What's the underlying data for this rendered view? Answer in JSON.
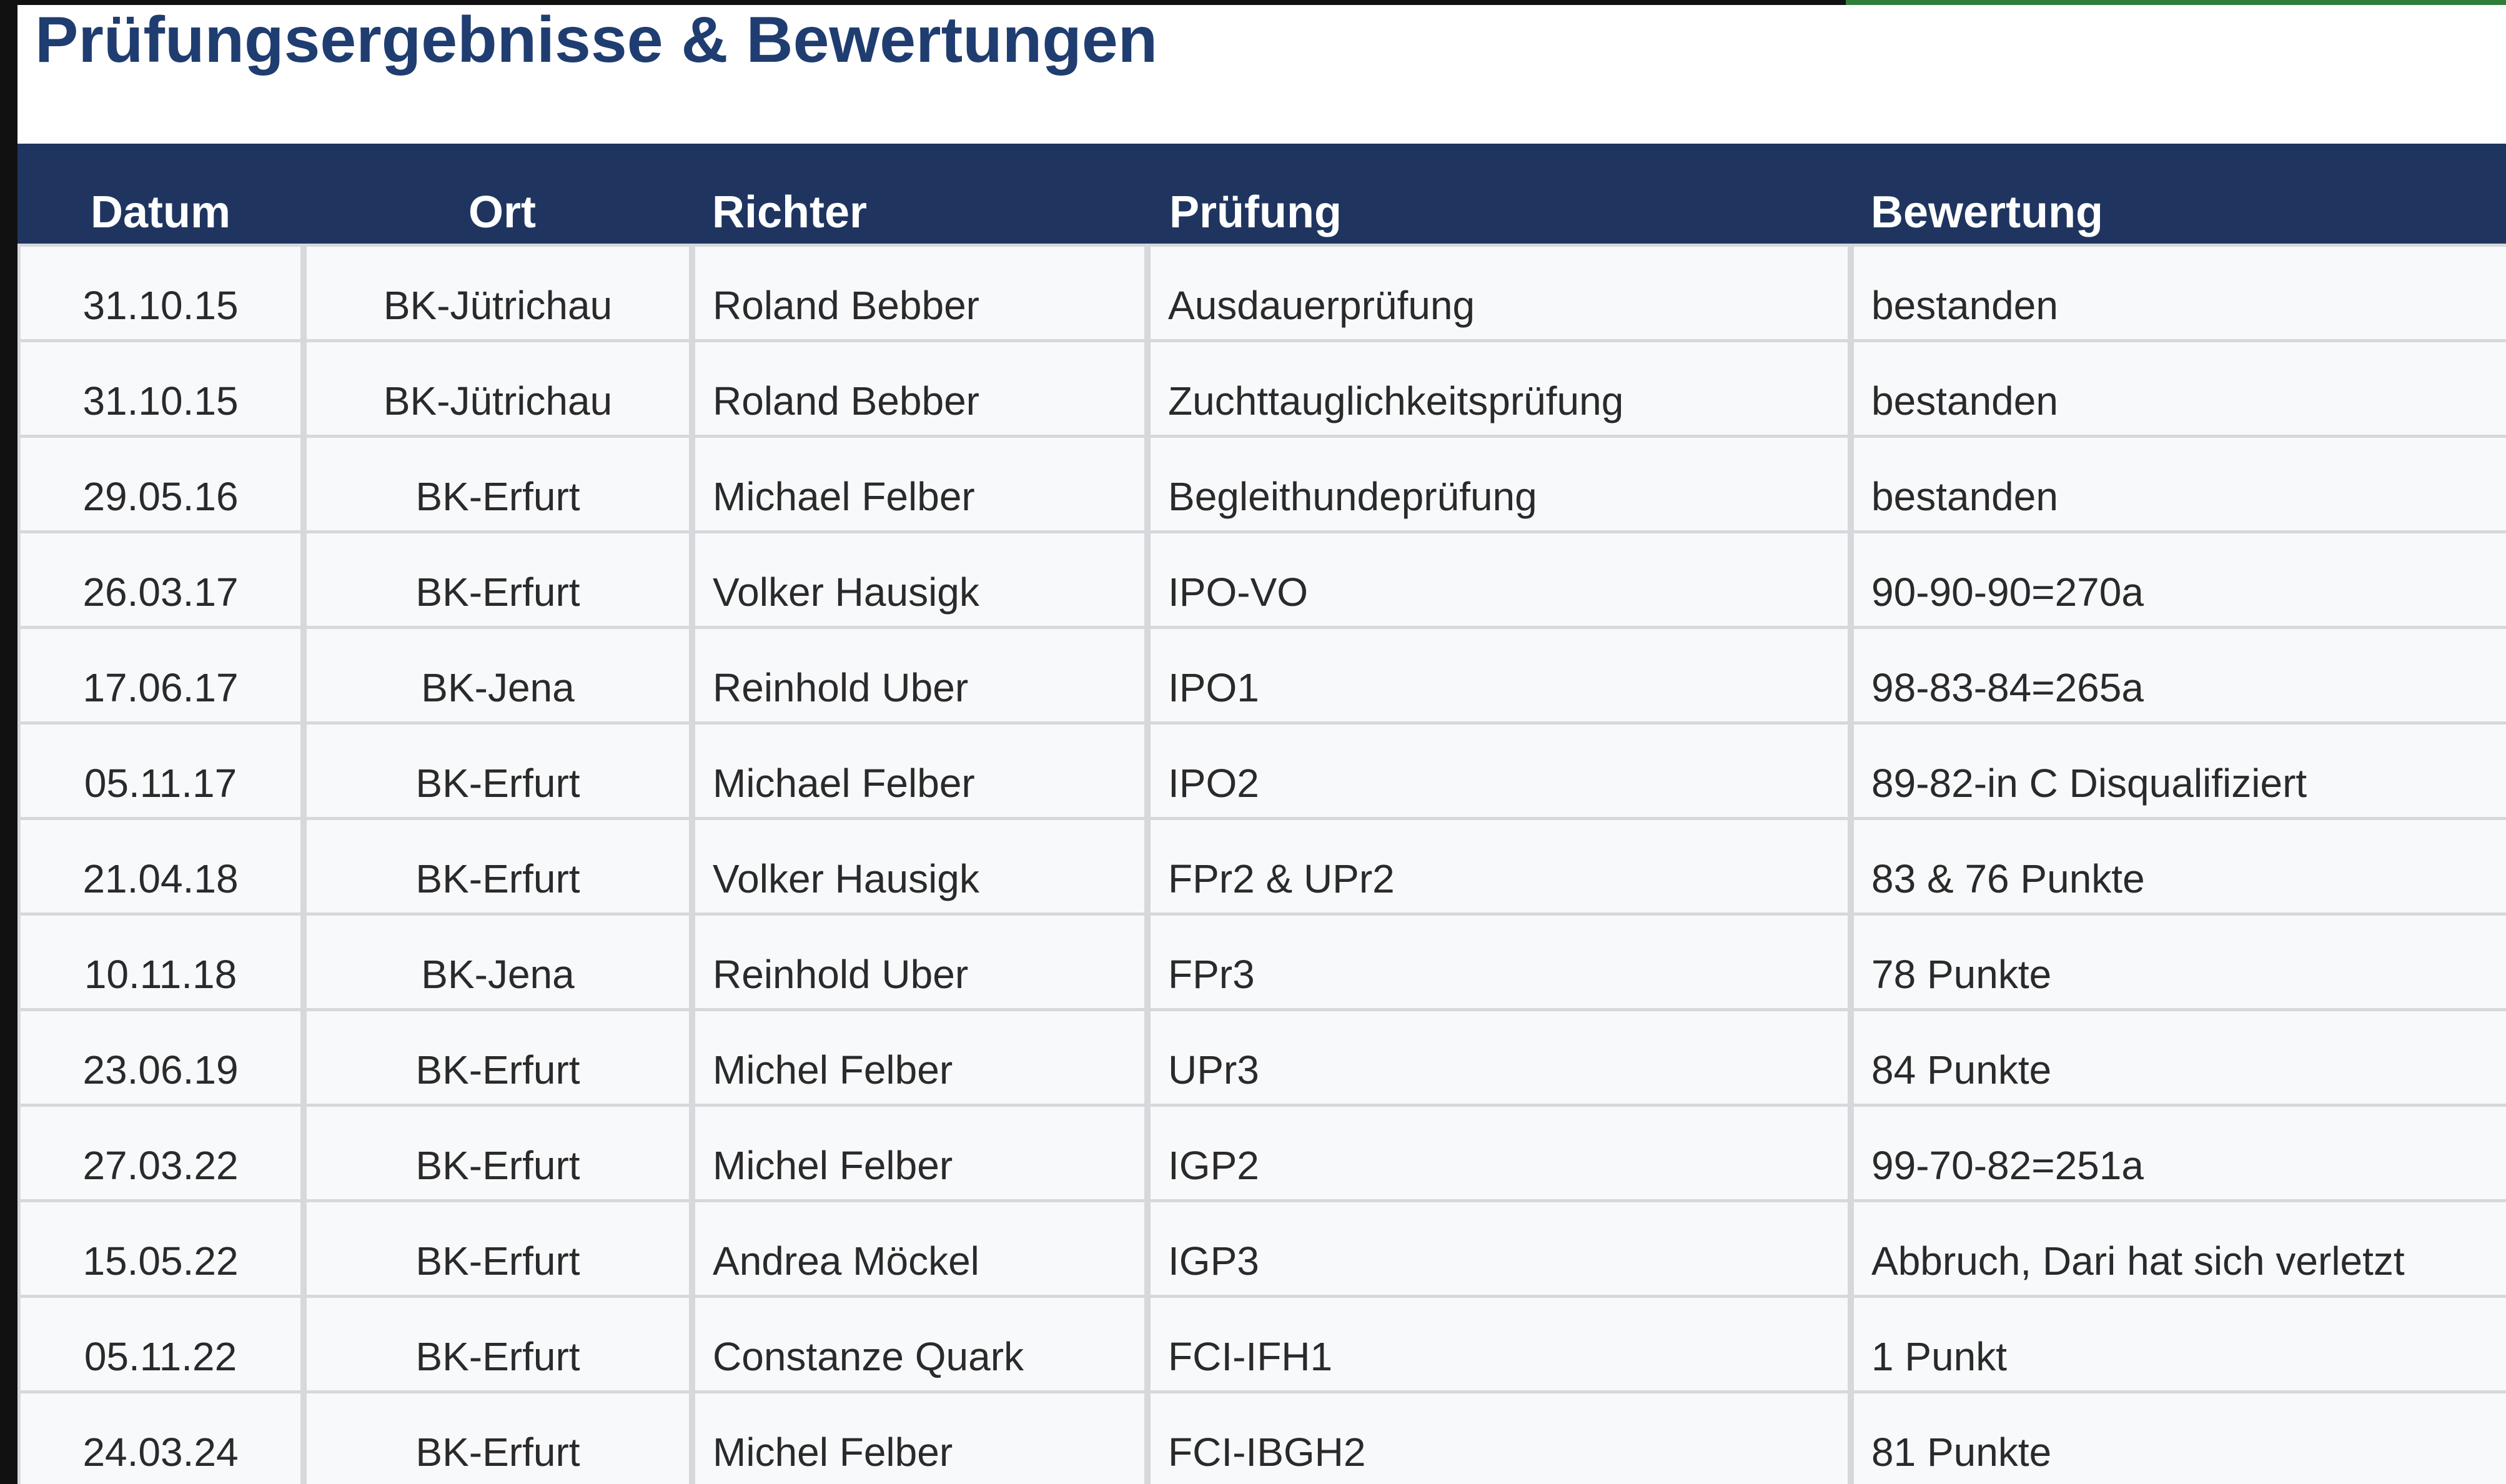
{
  "header": {
    "title": "Prüfungsergebnisse & Bewertungen"
  },
  "table": {
    "columns": [
      "Datum",
      "Ort",
      "Richter",
      "Prüfung",
      "Bewertung"
    ],
    "rows": [
      [
        "31.10.15",
        "BK-Jütrichau",
        "Roland Bebber",
        "Ausdauerprüfung",
        "bestanden"
      ],
      [
        "31.10.15",
        "BK-Jütrichau",
        "Roland Bebber",
        "Zuchttauglichkeitsprüfung",
        "bestanden"
      ],
      [
        "29.05.16",
        "BK-Erfurt",
        "Michael Felber",
        "Begleithundeprüfung",
        "bestanden"
      ],
      [
        "26.03.17",
        "BK-Erfurt",
        "Volker Hausigk",
        "IPO-VO",
        "90-90-90=270a"
      ],
      [
        "17.06.17",
        "BK-Jena",
        "Reinhold Uber",
        "IPO1",
        "98-83-84=265a"
      ],
      [
        "05.11.17",
        "BK-Erfurt",
        "Michael Felber",
        "IPO2",
        "89-82-in C Disqualifiziert"
      ],
      [
        "21.04.18",
        "BK-Erfurt",
        "Volker Hausigk",
        "FPr2 & UPr2",
        "83 & 76 Punkte"
      ],
      [
        "10.11.18",
        "BK-Jena",
        "Reinhold Uber",
        "FPr3",
        "78 Punkte"
      ],
      [
        "23.06.19",
        "BK-Erfurt",
        "Michel Felber",
        "UPr3",
        "84 Punkte"
      ],
      [
        "27.03.22",
        "BK-Erfurt",
        "Michel Felber",
        "IGP2",
        "99-70-82=251a"
      ],
      [
        "15.05.22",
        "BK-Erfurt",
        "Andrea Möckel",
        "IGP3",
        "Abbruch, Dari hat sich verletzt"
      ],
      [
        "05.11.22",
        "BK-Erfurt",
        "Constanze Quark",
        "FCI-IFH1",
        "1 Punkt"
      ],
      [
        "24.03.24",
        "BK-Erfurt",
        "Michel Felber",
        "FCI-IBGH2",
        "81 Punkte"
      ]
    ]
  }
}
